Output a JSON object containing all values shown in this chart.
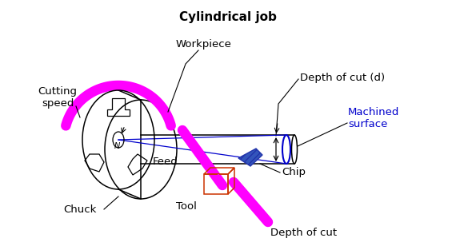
{
  "title": "Cylindrical job",
  "title_fontsize": 11,
  "title_fontweight": "bold",
  "bg_color": "#ffffff",
  "magenta": "#FF00FF",
  "blue": "#0000CC",
  "dark": "#000000",
  "red_brown": "#CC3300",
  "chip_color": "#3355BB",
  "figsize": [
    5.7,
    3.08
  ],
  "dpi": 100,
  "labels": {
    "cutting_speed": "Cutting\nspeed",
    "workpiece": "Workpiece",
    "depth_of_cut_d": "Depth of cut (d)",
    "machined_surface": "Machined\nsurface",
    "chuck": "Chuck",
    "feed": "Feed",
    "tool": "Tool",
    "chip": "Chip",
    "depth_of_cut": "Depth of cut",
    "N": "N"
  }
}
